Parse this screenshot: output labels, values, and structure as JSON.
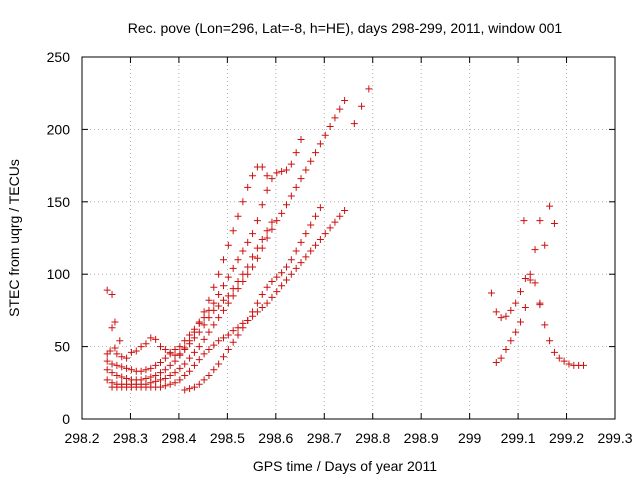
{
  "chart_data": {
    "type": "scatter",
    "title": "Rec. pove (Lon=296, Lat=-8, h=HE), days 298-299, 2011, window 001",
    "xlabel": "GPS time / Days of year 2011",
    "ylabel": "STEC from uqrg / TECUs",
    "xlim": [
      298.2,
      299.3
    ],
    "ylim": [
      0,
      250
    ],
    "xticks": [
      298.2,
      298.3,
      298.4,
      298.5,
      298.6,
      298.7,
      298.8,
      298.9,
      299,
      299.1,
      299.2,
      299.3
    ],
    "xtick_labels": [
      "298.2",
      "298.3",
      "298.4",
      "298.5",
      "298.6",
      "298.7",
      "298.8",
      "298.9",
      "299",
      "299.1",
      "299.2",
      "299.3"
    ],
    "yticks": [
      0,
      50,
      100,
      150,
      200,
      250
    ],
    "ytick_labels": [
      "0",
      "50",
      "100",
      "150",
      "200",
      "250"
    ],
    "grid": true,
    "legend": "none",
    "marker": "+",
    "color": "#cc1111",
    "series": [
      {
        "points": [
          [
            298.252,
            89
          ],
          [
            298.262,
            86
          ],
          [
            298.262,
            63
          ],
          [
            298.268,
            67
          ],
          [
            298.278,
            54
          ],
          [
            298.252,
            45
          ],
          [
            298.258,
            47
          ],
          [
            298.268,
            49
          ],
          [
            298.272,
            45
          ],
          [
            298.282,
            43
          ],
          [
            298.292,
            42
          ],
          [
            298.302,
            46
          ],
          [
            298.312,
            47
          ],
          [
            298.322,
            50
          ],
          [
            298.332,
            52
          ],
          [
            298.342,
            56
          ],
          [
            298.352,
            55
          ],
          [
            298.362,
            50
          ],
          [
            298.372,
            48
          ],
          [
            298.382,
            46
          ],
          [
            298.392,
            44
          ],
          [
            298.402,
            45
          ],
          [
            298.412,
            48
          ],
          [
            298.422,
            52
          ],
          [
            298.432,
            56
          ],
          [
            298.442,
            60
          ],
          [
            298.452,
            65
          ],
          [
            298.462,
            70
          ],
          [
            298.472,
            75
          ],
          [
            298.482,
            78
          ],
          [
            298.492,
            82
          ],
          [
            298.502,
            85
          ],
          [
            298.512,
            90
          ],
          [
            298.522,
            95
          ],
          [
            298.532,
            100
          ],
          [
            298.542,
            105
          ],
          [
            298.552,
            112
          ],
          [
            298.562,
            118
          ],
          [
            298.572,
            124
          ],
          [
            298.582,
            130
          ],
          [
            298.592,
            136
          ],
          [
            298.252,
            40
          ],
          [
            298.262,
            38
          ],
          [
            298.272,
            37
          ],
          [
            298.282,
            36
          ],
          [
            298.292,
            35
          ],
          [
            298.302,
            34
          ],
          [
            298.312,
            33
          ],
          [
            298.322,
            33
          ],
          [
            298.332,
            34
          ],
          [
            298.342,
            35
          ],
          [
            298.352,
            37
          ],
          [
            298.362,
            39
          ],
          [
            298.372,
            42
          ],
          [
            298.382,
            45
          ],
          [
            298.392,
            48
          ],
          [
            298.402,
            50
          ],
          [
            298.412,
            54
          ],
          [
            298.422,
            58
          ],
          [
            298.432,
            62
          ],
          [
            298.442,
            66
          ],
          [
            298.452,
            70
          ],
          [
            298.462,
            75
          ],
          [
            298.472,
            80
          ],
          [
            298.482,
            86
          ],
          [
            298.492,
            92
          ],
          [
            298.502,
            98
          ],
          [
            298.512,
            104
          ],
          [
            298.522,
            110
          ],
          [
            298.532,
            116
          ],
          [
            298.542,
            122
          ],
          [
            298.552,
            128
          ],
          [
            298.562,
            137
          ],
          [
            298.572,
            148
          ],
          [
            298.582,
            158
          ],
          [
            298.592,
            166
          ],
          [
            298.602,
            170
          ],
          [
            298.612,
            171
          ],
          [
            298.622,
            172
          ],
          [
            298.632,
            176
          ],
          [
            298.642,
            184
          ],
          [
            298.652,
            193
          ],
          [
            298.252,
            34
          ],
          [
            298.262,
            32
          ],
          [
            298.272,
            30
          ],
          [
            298.282,
            29
          ],
          [
            298.292,
            28
          ],
          [
            298.302,
            27
          ],
          [
            298.312,
            27
          ],
          [
            298.322,
            27
          ],
          [
            298.332,
            28
          ],
          [
            298.342,
            29
          ],
          [
            298.352,
            30
          ],
          [
            298.362,
            32
          ],
          [
            298.372,
            34
          ],
          [
            298.382,
            37
          ],
          [
            298.392,
            40
          ],
          [
            298.402,
            44
          ],
          [
            298.412,
            49
          ],
          [
            298.422,
            54
          ],
          [
            298.432,
            60
          ],
          [
            298.442,
            67
          ],
          [
            298.452,
            74
          ],
          [
            298.462,
            82
          ],
          [
            298.472,
            91
          ],
          [
            298.482,
            100
          ],
          [
            298.492,
            110
          ],
          [
            298.502,
            120
          ],
          [
            298.512,
            130
          ],
          [
            298.522,
            140
          ],
          [
            298.532,
            150
          ],
          [
            298.542,
            160
          ],
          [
            298.552,
            168
          ],
          [
            298.562,
            174
          ],
          [
            298.572,
            174
          ],
          [
            298.582,
            168
          ],
          [
            298.252,
            27
          ],
          [
            298.262,
            25
          ],
          [
            298.272,
            24
          ],
          [
            298.282,
            24
          ],
          [
            298.292,
            24
          ],
          [
            298.302,
            24
          ],
          [
            298.312,
            24
          ],
          [
            298.322,
            24
          ],
          [
            298.332,
            24
          ],
          [
            298.342,
            25
          ],
          [
            298.352,
            26
          ],
          [
            298.362,
            27
          ],
          [
            298.372,
            28
          ],
          [
            298.382,
            30
          ],
          [
            298.392,
            32
          ],
          [
            298.402,
            35
          ],
          [
            298.412,
            38
          ],
          [
            298.422,
            42
          ],
          [
            298.432,
            46
          ],
          [
            298.442,
            50
          ],
          [
            298.452,
            55
          ],
          [
            298.462,
            60
          ],
          [
            298.472,
            65
          ],
          [
            298.482,
            70
          ],
          [
            298.492,
            75
          ],
          [
            298.502,
            80
          ],
          [
            298.512,
            85
          ],
          [
            298.522,
            90
          ],
          [
            298.532,
            95
          ],
          [
            298.542,
            100
          ],
          [
            298.552,
            105
          ],
          [
            298.562,
            111
          ],
          [
            298.572,
            118
          ],
          [
            298.582,
            125
          ],
          [
            298.592,
            131
          ],
          [
            298.602,
            137
          ],
          [
            298.612,
            142
          ],
          [
            298.622,
            148
          ],
          [
            298.632,
            154
          ],
          [
            298.642,
            160
          ],
          [
            298.652,
            166
          ],
          [
            298.662,
            172
          ],
          [
            298.672,
            178
          ],
          [
            298.682,
            184
          ],
          [
            298.692,
            190
          ],
          [
            298.702,
            196
          ],
          [
            298.712,
            202
          ],
          [
            298.722,
            208
          ],
          [
            298.732,
            214
          ],
          [
            298.742,
            220
          ],
          [
            298.762,
            204
          ],
          [
            298.777,
            216
          ],
          [
            298.792,
            228
          ],
          [
            298.262,
            22
          ],
          [
            298.272,
            22
          ],
          [
            298.282,
            22
          ],
          [
            298.292,
            22
          ],
          [
            298.302,
            22
          ],
          [
            298.312,
            22
          ],
          [
            298.322,
            22
          ],
          [
            298.332,
            22
          ],
          [
            298.342,
            22
          ],
          [
            298.352,
            22
          ],
          [
            298.362,
            22
          ],
          [
            298.372,
            23
          ],
          [
            298.382,
            24
          ],
          [
            298.392,
            25
          ],
          [
            298.402,
            27
          ],
          [
            298.412,
            30
          ],
          [
            298.422,
            33
          ],
          [
            298.432,
            37
          ],
          [
            298.442,
            41
          ],
          [
            298.452,
            45
          ],
          [
            298.462,
            48
          ],
          [
            298.472,
            51
          ],
          [
            298.482,
            54
          ],
          [
            298.492,
            56
          ],
          [
            298.502,
            58
          ],
          [
            298.512,
            61
          ],
          [
            298.522,
            63
          ],
          [
            298.532,
            66
          ],
          [
            298.542,
            68
          ],
          [
            298.552,
            71
          ],
          [
            298.562,
            74
          ],
          [
            298.572,
            77
          ],
          [
            298.582,
            80
          ],
          [
            298.592,
            84
          ],
          [
            298.602,
            88
          ],
          [
            298.612,
            92
          ],
          [
            298.622,
            96
          ],
          [
            298.632,
            100
          ],
          [
            298.642,
            104
          ],
          [
            298.652,
            108
          ],
          [
            298.662,
            112
          ],
          [
            298.672,
            116
          ],
          [
            298.682,
            120
          ],
          [
            298.692,
            124
          ],
          [
            298.702,
            128
          ],
          [
            298.712,
            132
          ],
          [
            298.722,
            136
          ],
          [
            298.732,
            140
          ],
          [
            298.742,
            144
          ],
          [
            298.412,
            20
          ],
          [
            298.422,
            21
          ],
          [
            298.432,
            22
          ],
          [
            298.442,
            24
          ],
          [
            298.452,
            27
          ],
          [
            298.462,
            30
          ],
          [
            298.472,
            34
          ],
          [
            298.482,
            38
          ],
          [
            298.492,
            43
          ],
          [
            298.502,
            48
          ],
          [
            298.512,
            53
          ],
          [
            298.522,
            58
          ],
          [
            298.532,
            63
          ],
          [
            298.542,
            68
          ],
          [
            298.552,
            74
          ],
          [
            298.562,
            80
          ],
          [
            298.572,
            86
          ],
          [
            298.582,
            91
          ],
          [
            298.592,
            95
          ],
          [
            298.602,
            98
          ],
          [
            298.612,
            101
          ],
          [
            298.622,
            105
          ],
          [
            298.632,
            110
          ],
          [
            298.642,
            116
          ],
          [
            298.652,
            122
          ],
          [
            298.662,
            128
          ],
          [
            298.672,
            134
          ],
          [
            298.682,
            140
          ],
          [
            298.692,
            146
          ],
          [
            299.045,
            87
          ],
          [
            299.055,
            74
          ],
          [
            299.065,
            70
          ],
          [
            299.075,
            71
          ],
          [
            299.085,
            75
          ],
          [
            299.095,
            80
          ],
          [
            299.105,
            88
          ],
          [
            299.115,
            97
          ],
          [
            299.125,
            100
          ],
          [
            299.135,
            94
          ],
          [
            299.145,
            80
          ],
          [
            299.155,
            65
          ],
          [
            299.165,
            54
          ],
          [
            299.175,
            46
          ],
          [
            299.185,
            42
          ],
          [
            299.195,
            40
          ],
          [
            299.205,
            38
          ],
          [
            299.215,
            37
          ],
          [
            299.225,
            37
          ],
          [
            299.235,
            37
          ],
          [
            299.055,
            39
          ],
          [
            299.065,
            42
          ],
          [
            299.075,
            48
          ],
          [
            299.085,
            54
          ],
          [
            299.095,
            60
          ],
          [
            299.105,
            67
          ],
          [
            299.115,
            77
          ],
          [
            299.125,
            96
          ],
          [
            299.135,
            117
          ],
          [
            299.145,
            137
          ],
          [
            299.155,
            120
          ],
          [
            299.165,
            147
          ],
          [
            299.175,
            135
          ],
          [
            299.112,
            137
          ],
          [
            299.145,
            79
          ]
        ]
      }
    ]
  }
}
